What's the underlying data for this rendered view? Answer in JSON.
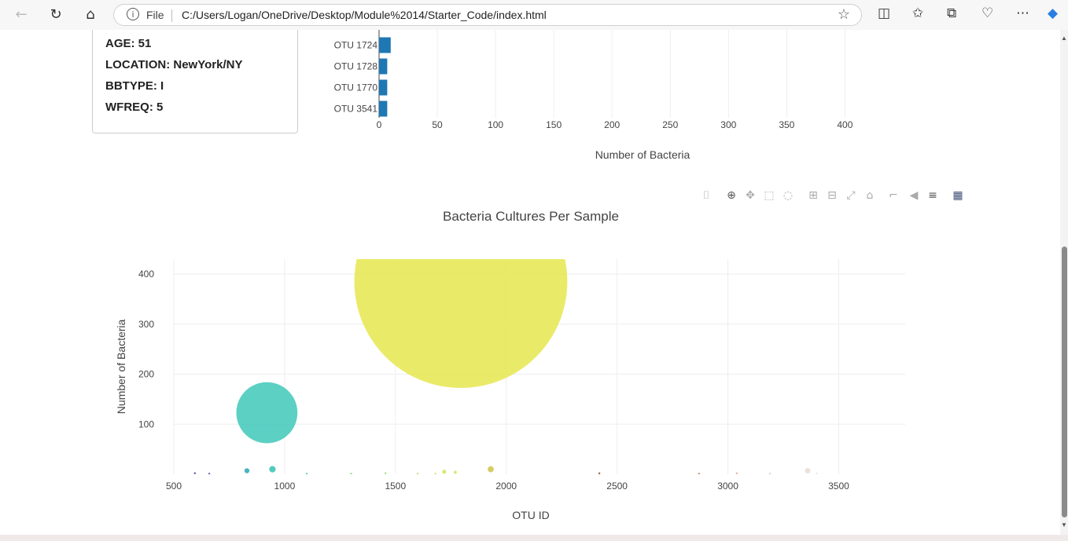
{
  "browser": {
    "file_label": "File",
    "url": "C:/Users/Logan/OneDrive/Desktop/Module%2014/Starter_Code/index.html"
  },
  "metadata": {
    "lines": [
      "AGE: 51",
      "LOCATION: NewYork/NY",
      "BBTYPE: I",
      "WFREQ: 5"
    ]
  },
  "chart_data": [
    {
      "type": "bar",
      "orientation": "horizontal",
      "categories": [
        "OTU 1724",
        "OTU 1728",
        "OTU 1770",
        "OTU 3541"
      ],
      "values": [
        10,
        7,
        7,
        7
      ],
      "xlabel": "Number of Bacteria",
      "xlim": [
        0,
        420
      ],
      "xticks": [
        0,
        50,
        100,
        150,
        200,
        250,
        300,
        350,
        400
      ],
      "color": "#1f77b4",
      "grid": true
    },
    {
      "type": "scatter",
      "title": "Bacteria Cultures Per Sample",
      "xlabel": "OTU ID",
      "ylabel": "Number of Bacteria",
      "xlim": [
        500,
        3800
      ],
      "ylim": [
        0,
        430
      ],
      "xticks": [
        500,
        1000,
        1500,
        2000,
        2500,
        3000,
        3500
      ],
      "yticks": [
        100,
        200,
        300,
        400
      ],
      "grid": true,
      "points": [
        {
          "x": 595,
          "y": 2,
          "size": 3,
          "color": "#3d2a99"
        },
        {
          "x": 660,
          "y": 1,
          "size": 2,
          "color": "#3344a8"
        },
        {
          "x": 830,
          "y": 7,
          "size": 10,
          "color": "#2aa6b8"
        },
        {
          "x": 920,
          "y": 123,
          "size": 122,
          "color": "#3fc8b8"
        },
        {
          "x": 945,
          "y": 10,
          "size": 13,
          "color": "#33c2b0"
        },
        {
          "x": 1100,
          "y": 1,
          "size": 2,
          "color": "#44c6a8"
        },
        {
          "x": 1300,
          "y": 1,
          "size": 2,
          "color": "#7fd07a"
        },
        {
          "x": 1455,
          "y": 2,
          "size": 3,
          "color": "#9cd66a"
        },
        {
          "x": 1600,
          "y": 1,
          "size": 2,
          "color": "#b6d860"
        },
        {
          "x": 1680,
          "y": 1,
          "size": 2,
          "color": "#c8dc5a"
        },
        {
          "x": 1720,
          "y": 5,
          "size": 8,
          "color": "#d4e25a"
        },
        {
          "x": 1770,
          "y": 4,
          "size": 6,
          "color": "#dadf58"
        },
        {
          "x": 1795,
          "y": 385,
          "size": 425,
          "color": "#e6e64f"
        },
        {
          "x": 1930,
          "y": 10,
          "size": 12,
          "color": "#cfc34a"
        },
        {
          "x": 2420,
          "y": 2,
          "size": 4,
          "color": "#8a5a33"
        },
        {
          "x": 2870,
          "y": 1,
          "size": 3,
          "color": "#b07a5c"
        },
        {
          "x": 3040,
          "y": 2,
          "size": 4,
          "color": "#d8b0a0"
        },
        {
          "x": 3190,
          "y": 1,
          "size": 3,
          "color": "#ddc2b4"
        },
        {
          "x": 3360,
          "y": 7,
          "size": 11,
          "color": "#e8dcd6"
        },
        {
          "x": 3400,
          "y": 1,
          "size": 3,
          "color": "#eae0da"
        }
      ]
    }
  ]
}
